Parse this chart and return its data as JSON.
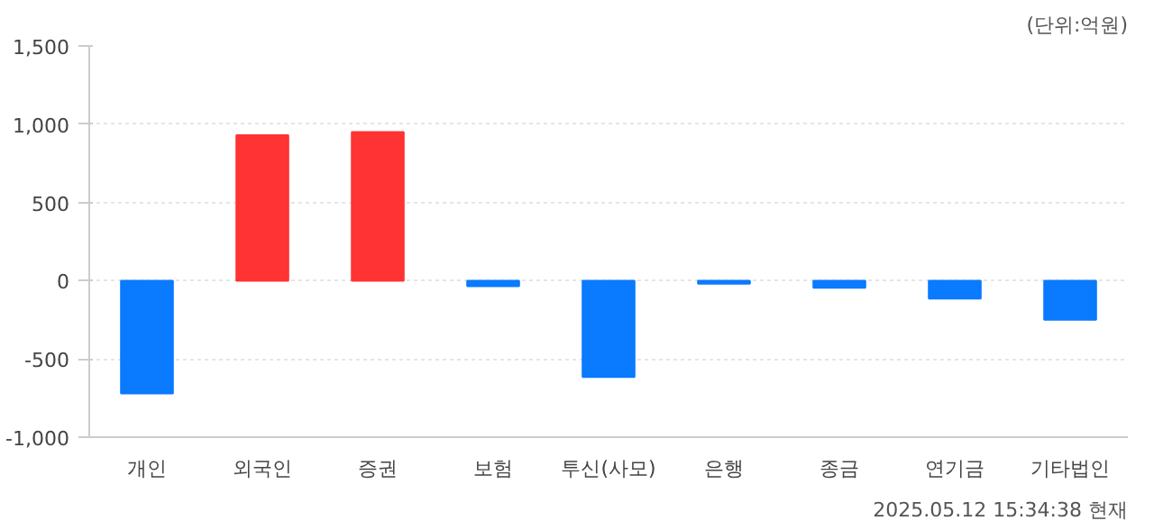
{
  "chart_data": {
    "type": "bar",
    "categories": [
      "개인",
      "외국인",
      "증권",
      "보험",
      "투신(사모)",
      "은행",
      "종금",
      "연기금",
      "기타법인"
    ],
    "values": [
      -720,
      930,
      950,
      -35,
      -615,
      -20,
      -45,
      -115,
      -250
    ],
    "colors": [
      "#0a7aff",
      "#ff3333",
      "#ff3333",
      "#0a7aff",
      "#0a7aff",
      "#0a7aff",
      "#0a7aff",
      "#0a7aff",
      "#0a7aff"
    ],
    "ylim": [
      -1000,
      1500
    ],
    "yticks": [
      {
        "value": -1000,
        "label": "-1,000"
      },
      {
        "value": -500,
        "label": "-500"
      },
      {
        "value": 0,
        "label": "0"
      },
      {
        "value": 500,
        "label": "500"
      },
      {
        "value": 1000,
        "label": "1,000"
      },
      {
        "value": 1500,
        "label": "1,500"
      }
    ],
    "grid": "y",
    "annotations": [
      "(단위:억원)",
      "2025.05.12 15:34:38 현재"
    ]
  }
}
